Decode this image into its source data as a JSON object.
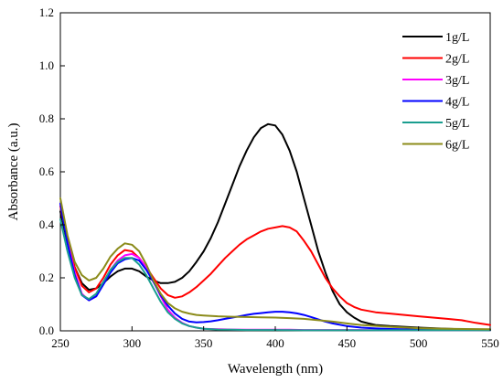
{
  "chart_data": {
    "type": "line",
    "xlabel": "Wavelength (nm)",
    "ylabel": "Absorbance (a.u.)",
    "xlim": [
      250,
      550
    ],
    "ylim": [
      0.0,
      1.2
    ],
    "x_ticks": [
      250,
      300,
      350,
      400,
      450,
      500,
      550
    ],
    "y_ticks": [
      0.0,
      0.2,
      0.4,
      0.6,
      0.8,
      1.0,
      1.2
    ],
    "y_tick_labels": [
      "0.0",
      "0.2",
      "0.4",
      "0.6",
      "0.8",
      "1.0",
      "1.2"
    ],
    "grid": false,
    "legend_position": "top-right",
    "series": [
      {
        "name": "1g/L",
        "color": "#000000",
        "x": [
          250,
          255,
          260,
          265,
          270,
          275,
          280,
          285,
          290,
          295,
          300,
          305,
          310,
          315,
          320,
          325,
          330,
          335,
          340,
          345,
          350,
          355,
          360,
          365,
          370,
          375,
          380,
          385,
          390,
          395,
          400,
          405,
          410,
          415,
          420,
          425,
          430,
          435,
          440,
          445,
          450,
          455,
          460,
          465,
          470,
          480,
          490,
          500,
          510,
          520,
          530,
          540,
          550
        ],
        "y": [
          0.45,
          0.33,
          0.24,
          0.18,
          0.155,
          0.16,
          0.18,
          0.205,
          0.225,
          0.235,
          0.235,
          0.225,
          0.205,
          0.19,
          0.18,
          0.18,
          0.185,
          0.2,
          0.225,
          0.26,
          0.3,
          0.35,
          0.41,
          0.48,
          0.55,
          0.62,
          0.68,
          0.73,
          0.765,
          0.78,
          0.775,
          0.74,
          0.68,
          0.6,
          0.5,
          0.4,
          0.3,
          0.22,
          0.15,
          0.1,
          0.07,
          0.05,
          0.035,
          0.028,
          0.022,
          0.018,
          0.015,
          0.012,
          0.01,
          0.008,
          0.006,
          0.005,
          0.004
        ]
      },
      {
        "name": "2g/L",
        "color": "#ff0000",
        "x": [
          250,
          255,
          260,
          265,
          270,
          275,
          280,
          285,
          290,
          295,
          300,
          305,
          310,
          315,
          320,
          325,
          330,
          335,
          340,
          345,
          350,
          355,
          360,
          365,
          370,
          375,
          380,
          385,
          390,
          395,
          400,
          405,
          410,
          415,
          420,
          425,
          430,
          435,
          440,
          445,
          450,
          455,
          460,
          470,
          480,
          490,
          500,
          510,
          520,
          530,
          540,
          550
        ],
        "y": [
          0.47,
          0.34,
          0.24,
          0.17,
          0.145,
          0.16,
          0.2,
          0.25,
          0.285,
          0.305,
          0.3,
          0.275,
          0.24,
          0.2,
          0.16,
          0.135,
          0.125,
          0.13,
          0.145,
          0.165,
          0.19,
          0.215,
          0.245,
          0.275,
          0.3,
          0.325,
          0.345,
          0.36,
          0.375,
          0.385,
          0.39,
          0.395,
          0.39,
          0.375,
          0.34,
          0.3,
          0.25,
          0.2,
          0.16,
          0.13,
          0.105,
          0.09,
          0.08,
          0.07,
          0.065,
          0.06,
          0.055,
          0.05,
          0.045,
          0.04,
          0.03,
          0.022
        ]
      },
      {
        "name": "3g/L",
        "color": "#ff00ff",
        "x": [
          250,
          255,
          260,
          265,
          270,
          275,
          280,
          285,
          290,
          295,
          300,
          305,
          310,
          315,
          320,
          325,
          330,
          335,
          340,
          345,
          350,
          360,
          370,
          380,
          390,
          400,
          410,
          420,
          430,
          440,
          450,
          460,
          480,
          500,
          520,
          550
        ],
        "y": [
          0.48,
          0.34,
          0.22,
          0.14,
          0.115,
          0.13,
          0.18,
          0.23,
          0.265,
          0.285,
          0.29,
          0.275,
          0.24,
          0.19,
          0.13,
          0.08,
          0.05,
          0.03,
          0.018,
          0.012,
          0.008,
          0.006,
          0.005,
          0.004,
          0.004,
          0.004,
          0.004,
          0.003,
          0.003,
          0.003,
          0.003,
          0.003,
          0.002,
          0.002,
          0.002,
          0.002
        ]
      },
      {
        "name": "4g/L",
        "color": "#0000ff",
        "x": [
          250,
          255,
          260,
          265,
          270,
          275,
          280,
          285,
          290,
          295,
          300,
          305,
          310,
          315,
          320,
          325,
          330,
          335,
          340,
          345,
          350,
          355,
          360,
          365,
          370,
          375,
          380,
          385,
          390,
          395,
          400,
          405,
          410,
          415,
          420,
          425,
          430,
          435,
          440,
          450,
          460,
          470,
          480,
          500,
          520,
          550
        ],
        "y": [
          0.48,
          0.33,
          0.21,
          0.135,
          0.115,
          0.13,
          0.175,
          0.22,
          0.255,
          0.27,
          0.275,
          0.265,
          0.23,
          0.185,
          0.135,
          0.095,
          0.065,
          0.045,
          0.035,
          0.032,
          0.033,
          0.036,
          0.04,
          0.045,
          0.05,
          0.055,
          0.06,
          0.064,
          0.067,
          0.07,
          0.072,
          0.072,
          0.07,
          0.066,
          0.06,
          0.052,
          0.043,
          0.035,
          0.028,
          0.018,
          0.012,
          0.009,
          0.007,
          0.005,
          0.004,
          0.003
        ]
      },
      {
        "name": "5g/L",
        "color": "#1a9e8f",
        "x": [
          250,
          255,
          260,
          265,
          270,
          275,
          280,
          285,
          290,
          295,
          300,
          305,
          310,
          315,
          320,
          325,
          330,
          335,
          340,
          345,
          350,
          360,
          370,
          380,
          390,
          400,
          420,
          440,
          460,
          480,
          500,
          520,
          550
        ],
        "y": [
          0.42,
          0.3,
          0.2,
          0.135,
          0.12,
          0.14,
          0.185,
          0.23,
          0.26,
          0.275,
          0.275,
          0.25,
          0.21,
          0.16,
          0.11,
          0.07,
          0.045,
          0.028,
          0.018,
          0.012,
          0.008,
          0.005,
          0.004,
          0.003,
          0.003,
          0.003,
          0.002,
          0.002,
          0.002,
          0.002,
          0.002,
          0.002,
          0.002
        ]
      },
      {
        "name": "6g/L",
        "color": "#8b8b1a",
        "x": [
          250,
          255,
          260,
          265,
          270,
          275,
          280,
          285,
          290,
          295,
          300,
          305,
          310,
          315,
          320,
          325,
          330,
          335,
          340,
          345,
          350,
          360,
          370,
          380,
          390,
          400,
          410,
          420,
          430,
          440,
          450,
          460,
          480,
          500,
          520,
          550
        ],
        "y": [
          0.5,
          0.36,
          0.26,
          0.21,
          0.19,
          0.2,
          0.235,
          0.28,
          0.31,
          0.33,
          0.325,
          0.3,
          0.25,
          0.19,
          0.14,
          0.105,
          0.085,
          0.072,
          0.065,
          0.06,
          0.058,
          0.055,
          0.053,
          0.052,
          0.051,
          0.05,
          0.048,
          0.045,
          0.04,
          0.035,
          0.028,
          0.022,
          0.015,
          0.01,
          0.008,
          0.006
        ]
      }
    ]
  }
}
